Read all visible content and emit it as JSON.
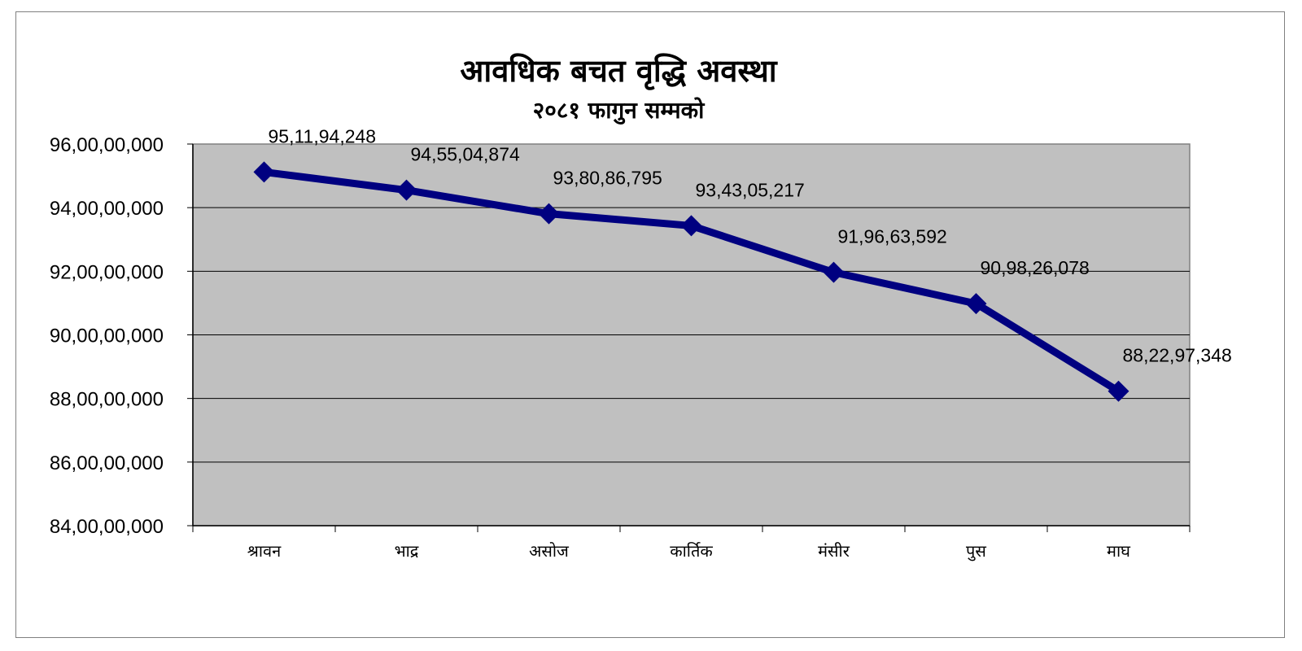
{
  "chart_data": {
    "type": "line",
    "title": "आवधिक बचत वृद्धि अवस्था",
    "subtitle": "२०८१ फागुन सम्मको",
    "categories": [
      "श्रावन",
      "भाद्र",
      "असोज",
      "कार्तिक",
      "मंसीर",
      "पुस",
      "माघ"
    ],
    "series": [
      {
        "values": [
          951194248,
          945504874,
          938086795,
          934305217,
          919663592,
          909826078,
          882297348
        ],
        "labels": [
          "95,11,94,248",
          "94,55,04,874",
          "93,80,86,795",
          "93,43,05,217",
          "91,96,63,592",
          "90,98,26,078",
          "88,22,97,348"
        ],
        "color": "#000080"
      }
    ],
    "ylim": [
      840000000,
      960000000
    ],
    "yticks": [
      "84,00,00,000",
      "86,00,00,000",
      "88,00,00,000",
      "90,00,00,000",
      "92,00,00,000",
      "94,00,00,000",
      "96,00,00,000"
    ],
    "plot_background": "#c0c0c0",
    "grid": true,
    "marker": "diamond"
  }
}
